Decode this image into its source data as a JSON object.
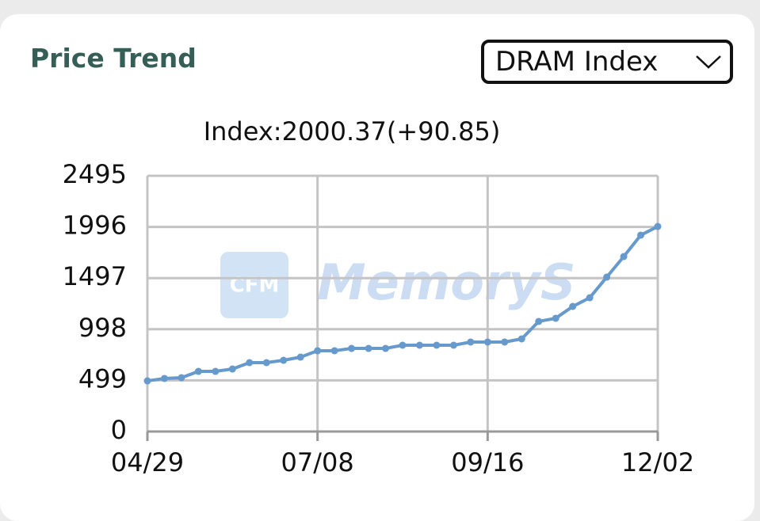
{
  "header": {
    "title": "Price Trend",
    "selector": "DRAM Index"
  },
  "watermark": {
    "logo": "CFM",
    "text": "MemoryS"
  },
  "chart_data": {
    "type": "line",
    "title": "Index:2000.37(+90.85)",
    "categories": [
      "04/29",
      null,
      null,
      null,
      null,
      null,
      null,
      null,
      null,
      null,
      "07/08",
      null,
      null,
      null,
      null,
      null,
      null,
      null,
      null,
      null,
      "09/16",
      null,
      null,
      null,
      null,
      null,
      null,
      null,
      null,
      null,
      "12/02"
    ],
    "series": [
      {
        "name": "DRAM Index",
        "color": "#6699cc",
        "values": [
          494,
          518,
          525,
          587,
          587,
          610,
          672,
          672,
          695,
          726,
          788,
          788,
          811,
          811,
          811,
          842,
          842,
          842,
          842,
          873,
          873,
          873,
          904,
          1074,
          1105,
          1220,
          1305,
          1506,
          1707,
          1916,
          2000.37
        ]
      }
    ],
    "ylim": [
      0,
      2495
    ],
    "yticks": [
      0,
      499,
      998,
      1497,
      1996,
      2495
    ],
    "grid": true
  }
}
